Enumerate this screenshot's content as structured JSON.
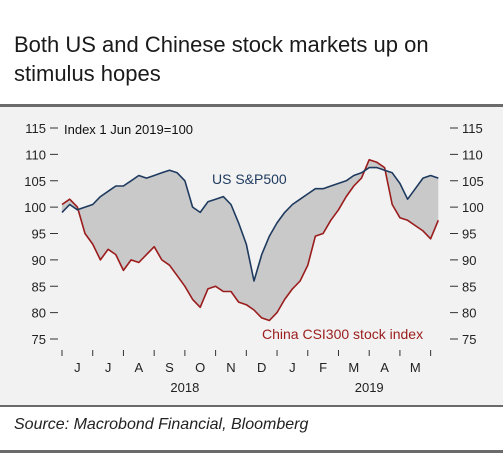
{
  "title": "Both US and Chinese stock markets up on stimulus hopes",
  "source": "Source: Macrobond Financial, Bloomberg",
  "chart_data": {
    "type": "area",
    "note": "Index 1 Jun 2019=100",
    "ylim": [
      75,
      115
    ],
    "yticks": [
      75,
      80,
      85,
      90,
      95,
      100,
      105,
      110,
      115
    ],
    "month_labels": [
      "J",
      "J",
      "A",
      "S",
      "O",
      "N",
      "D",
      "J",
      "F",
      "M",
      "A",
      "M"
    ],
    "year_labels": [
      {
        "label": "2018",
        "at_month": 4
      },
      {
        "label": "2019",
        "at_month": 10
      }
    ],
    "x_unit": "months from start of Jun 2018",
    "xlim": [
      0,
      12.5
    ],
    "colors": {
      "us": "#1f3a5f",
      "china": "#9b1c1c",
      "fill": "#c9c9c9"
    },
    "series": [
      {
        "name": "US S&P500",
        "label_text": "US S&P500",
        "x": [
          0.0,
          0.25,
          0.5,
          0.75,
          1.0,
          1.25,
          1.5,
          1.75,
          2.0,
          2.25,
          2.5,
          2.75,
          3.0,
          3.25,
          3.5,
          3.75,
          4.0,
          4.25,
          4.5,
          4.75,
          5.0,
          5.25,
          5.5,
          5.75,
          6.0,
          6.25,
          6.5,
          6.75,
          7.0,
          7.25,
          7.5,
          7.75,
          8.0,
          8.25,
          8.5,
          8.75,
          9.0,
          9.25,
          9.5,
          9.75,
          10.0,
          10.25,
          10.5,
          10.75,
          11.0,
          11.25,
          11.5,
          11.75,
          12.0,
          12.25
        ],
        "values": [
          99.0,
          100.5,
          99.5,
          100.0,
          100.5,
          102.0,
          103.0,
          104.0,
          104.0,
          105.0,
          106.0,
          105.5,
          106.0,
          106.5,
          107.0,
          106.5,
          105.0,
          100.0,
          99.0,
          101.0,
          101.5,
          102.0,
          100.5,
          97.0,
          93.0,
          86.0,
          91.0,
          94.5,
          97.0,
          99.0,
          100.5,
          101.5,
          102.5,
          103.5,
          103.5,
          104.0,
          104.5,
          105.0,
          106.0,
          106.5,
          107.5,
          107.5,
          107.0,
          106.5,
          104.5,
          101.5,
          103.5,
          105.5,
          106.0,
          105.5
        ]
      },
      {
        "name": "China CSI300 stock index",
        "label_text": "China CSI300 stock index",
        "x": [
          0.0,
          0.25,
          0.5,
          0.75,
          1.0,
          1.25,
          1.5,
          1.75,
          2.0,
          2.25,
          2.5,
          2.75,
          3.0,
          3.25,
          3.5,
          3.75,
          4.0,
          4.25,
          4.5,
          4.75,
          5.0,
          5.25,
          5.5,
          5.75,
          6.0,
          6.25,
          6.5,
          6.75,
          7.0,
          7.25,
          7.5,
          7.75,
          8.0,
          8.25,
          8.5,
          8.75,
          9.0,
          9.25,
          9.5,
          9.75,
          10.0,
          10.25,
          10.5,
          10.75,
          11.0,
          11.25,
          11.5,
          11.75,
          12.0,
          12.25
        ],
        "values": [
          100.5,
          101.5,
          100.0,
          95.0,
          93.0,
          90.0,
          92.0,
          91.0,
          88.0,
          90.0,
          89.5,
          91.0,
          92.5,
          90.0,
          89.0,
          87.0,
          85.0,
          82.5,
          81.0,
          84.5,
          85.0,
          84.0,
          84.0,
          82.0,
          81.5,
          80.5,
          79.0,
          78.5,
          80.0,
          82.5,
          84.5,
          86.0,
          89.0,
          94.5,
          95.0,
          97.5,
          99.5,
          102.0,
          104.0,
          105.5,
          109.0,
          108.5,
          107.5,
          100.5,
          98.0,
          97.5,
          96.5,
          95.5,
          94.0,
          97.5
        ]
      }
    ]
  }
}
